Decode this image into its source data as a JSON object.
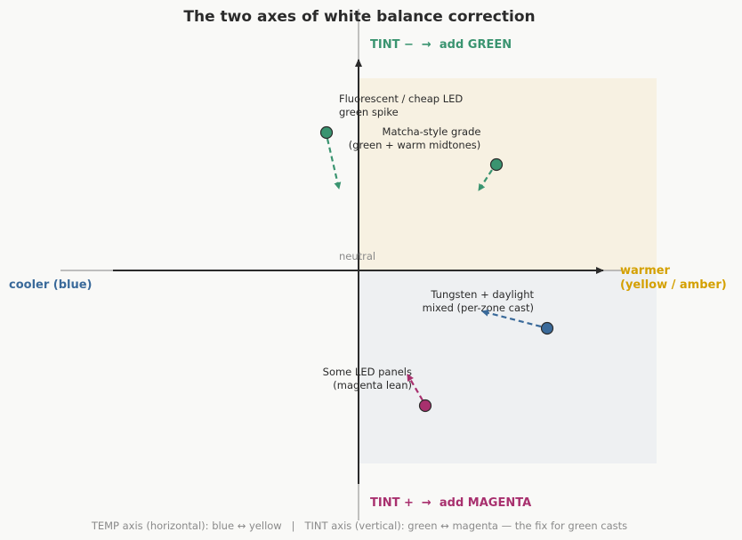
{
  "title": "The two axes of white balance correction",
  "axis_labels": {
    "tint_minus": "TINT −  →  add GREEN",
    "tint_plus": "TINT +  →  add MAGENTA",
    "cooler": "cooler (blue)",
    "warmer_line1": "warmer",
    "warmer_line2": "(yellow / amber)"
  },
  "center_label": "neutral",
  "footer": "TEMP axis (horizontal): blue ↔ yellow   |   TINT axis (vertical): green ↔ magenta — the fix for green casts",
  "colors": {
    "green": "#3a9470",
    "magenta": "#a8306e",
    "blue": "#3a6a9a",
    "amber": "#d4a000",
    "axis": "#2b2b2b",
    "warm_zone": "#f7f1e2",
    "cool_zone": "#eef0f2"
  },
  "points": [
    {
      "name": "fluorescent",
      "label_lines": [
        "Fluorescent / cheap LED",
        "green spike"
      ],
      "color": "#3a9470"
    },
    {
      "name": "matcha",
      "label_lines": [
        "Matcha-style grade",
        "(green + warm midtones)"
      ],
      "color": "#3a9470"
    },
    {
      "name": "tungsten-daylight",
      "label_lines": [
        "Tungsten + daylight",
        "mixed (per-zone cast)"
      ],
      "color": "#3a6a9a"
    },
    {
      "name": "led-panels",
      "label_lines": [
        "Some LED panels",
        "(magenta lean)"
      ],
      "color": "#a8306e"
    }
  ]
}
